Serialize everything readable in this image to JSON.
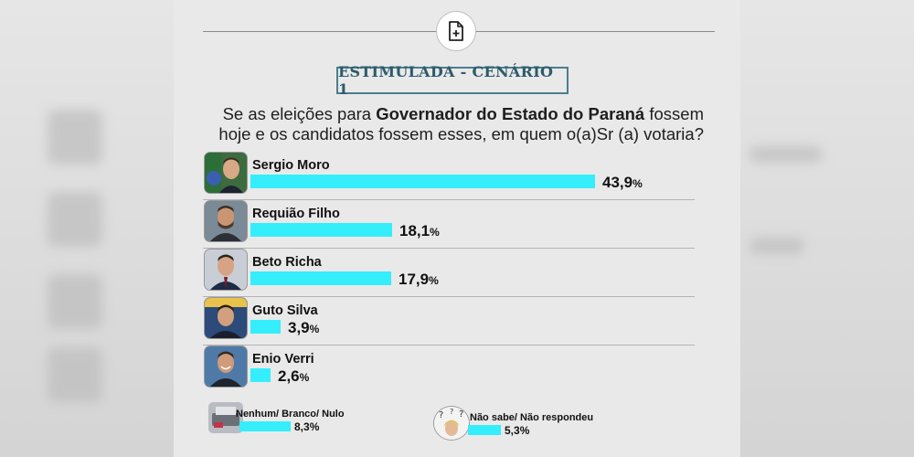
{
  "header": {
    "title": "ESTIMULADA - CENÁRIO 1",
    "question_prefix": "Se as eleições para ",
    "question_bold": "Governador do Estado do Paraná",
    "question_suffix": " fossem hoje e os candidatos fossem esses, em quem o(a)Sr (a) votaria?"
  },
  "icons": {
    "top": "document-add-icon",
    "nenhum": "ballot-box-icon",
    "nao_sabe": "question-person-icon"
  },
  "colors": {
    "bar": "#34eefb",
    "title_border": "#4b7d8f",
    "title_text": "#2d5b6b",
    "card_bg": "#e9e9e9"
  },
  "chart_data": {
    "type": "bar",
    "categories": [
      "Sergio Moro",
      "Requião Filho",
      "Beto Richa",
      "Guto Silva",
      "Enio Verri",
      "Nenhum/ Branco/ Nulo",
      "Não sabe/ Não respondeu"
    ],
    "values": [
      43.9,
      18.1,
      17.9,
      3.9,
      2.6,
      8.3,
      5.3
    ],
    "labels": [
      "43,9",
      "18,1",
      "17,9",
      "3,9",
      "2,6",
      "8,3",
      "5,3"
    ],
    "unit": "%",
    "title": "ESTIMULADA - CENÁRIO 1"
  }
}
